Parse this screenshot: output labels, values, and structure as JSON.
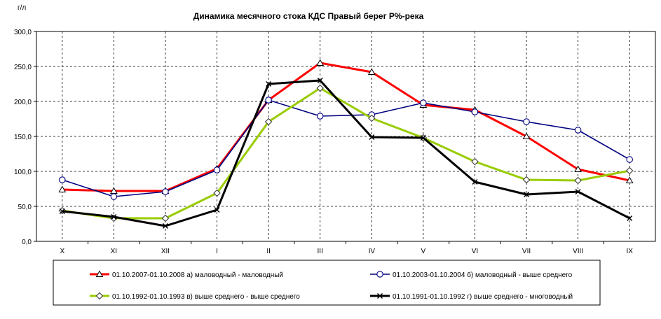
{
  "chart_data": {
    "type": "line",
    "title": "Динамика месячного стока КДС Правый берег Р%-река",
    "ylabel": "г/л",
    "xlabel": "",
    "ylim": [
      0,
      300
    ],
    "y_ticks": [
      "0,0",
      "50,0",
      "100,0",
      "150,0",
      "200,0",
      "250,0",
      "300,0"
    ],
    "categories": [
      "X",
      "XI",
      "XII",
      "I",
      "II",
      "III",
      "IV",
      "V",
      "VI",
      "VII",
      "VIII",
      "IX"
    ],
    "grid": true,
    "legend_position": "bottom",
    "series": [
      {
        "name": "01.10.2007-01.10.2008 а) маловодный - маловодный",
        "color": "#ff0000",
        "marker": "triangle",
        "values": [
          74,
          72,
          72,
          104,
          202,
          255,
          242,
          195,
          188,
          150,
          103,
          87
        ]
      },
      {
        "name": "01.10.2003-01.10.2004 б) маловодный - выше среднего",
        "color": "#000080",
        "marker": "circle",
        "values": [
          88,
          64,
          71,
          102,
          202,
          179,
          181,
          198,
          185,
          171,
          159,
          117
        ]
      },
      {
        "name": "01.10.1992-01.10.1993 в) выше среднего - выше среднего",
        "color": "#99cc00",
        "marker": "diamond",
        "values": [
          44,
          33,
          33,
          69,
          171,
          219,
          176,
          148,
          114,
          88,
          87,
          101
        ]
      },
      {
        "name": "01.10.1991-01.10.1992 г) выше среднего - многоводный",
        "color": "#000000",
        "marker": "x",
        "values": [
          43,
          35,
          22,
          45,
          225,
          230,
          149,
          148,
          85,
          67,
          71,
          33
        ]
      }
    ]
  }
}
